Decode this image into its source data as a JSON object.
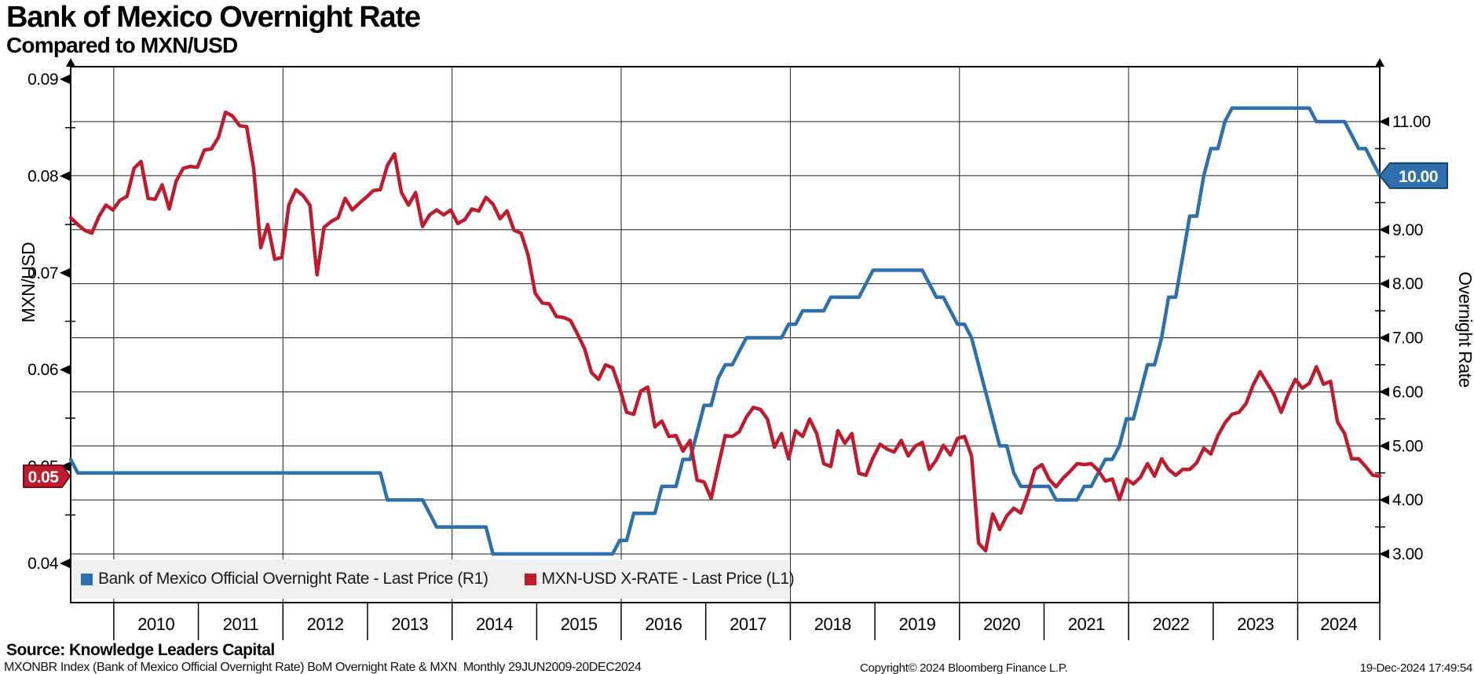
{
  "header": {
    "title": "Bank of Mexico Overnight Rate",
    "subtitle": "Compared to MXN/USD"
  },
  "footer": {
    "source_line": "Source: Knowledge Leaders Capital",
    "description": "MXONBR Index (Bank of Mexico Official Overnight Rate) BoM Overnight Rate & MXN  Monthly 29JUN2009-20DEC2024",
    "copyright": "Copyright© 2024 Bloomberg Finance L.P.",
    "timestamp": "19-Dec-2024 17:49:54"
  },
  "colors": {
    "overnight_rate_blue": "#2e6fad",
    "overnight_badge_border": "#16446e",
    "mxn_usd_red": "#c01b2d",
    "mxn_badge_border": "#70101c",
    "gridline": "#1a1a1a",
    "legend_bg": "#f0f0ee"
  },
  "chart_data": {
    "type": "line",
    "title": "Bank of Mexico Overnight Rate",
    "subtitle": "Compared to MXN/USD",
    "frequency": "Monthly",
    "period": "29JUN2009-20DEC2024",
    "x_axis": {
      "year_labels": [
        "2010",
        "2011",
        "2012",
        "2013",
        "2014",
        "2015",
        "2016",
        "2017",
        "2018",
        "2019",
        "2020",
        "2021",
        "2022",
        "2023",
        "2024"
      ],
      "range_years": [
        2009.49,
        2024.97
      ],
      "gridline_years": [
        2010,
        2012,
        2014,
        2016,
        2018,
        2020,
        2022,
        2024
      ],
      "separator_years": [
        2010,
        2011,
        2012,
        2013,
        2014,
        2015,
        2016,
        2017,
        2018,
        2019,
        2020,
        2021,
        2022,
        2023,
        2024,
        2025
      ]
    },
    "left_axis": {
      "label": "MXN/USD",
      "ticks": [
        0.04,
        0.05,
        0.06,
        0.07,
        0.08,
        0.09
      ],
      "minor_ticks": [
        0.045,
        0.055,
        0.065,
        0.075,
        0.085
      ],
      "range": [
        0.04,
        0.09
      ],
      "gridlines": false
    },
    "right_axis": {
      "label": "Overnight Rate",
      "ticks": [
        3,
        4,
        5,
        6,
        7,
        8,
        9,
        10,
        11
      ],
      "minor_ticks": [
        3.5,
        4.5,
        5.5,
        6.5,
        7.5,
        8.5,
        9.5,
        10.5
      ],
      "range": [
        3,
        11
      ],
      "gridlines": true
    },
    "series": [
      {
        "name": "Bank of Mexico Official Overnight Rate - Last Price (R1)",
        "axis": "right",
        "color": "#2e6fad",
        "monthly_start": "2009-06",
        "values": [
          4.75,
          4.5,
          4.5,
          4.5,
          4.5,
          4.5,
          4.5,
          4.5,
          4.5,
          4.5,
          4.5,
          4.5,
          4.5,
          4.5,
          4.5,
          4.5,
          4.5,
          4.5,
          4.5,
          4.5,
          4.5,
          4.5,
          4.5,
          4.5,
          4.5,
          4.5,
          4.5,
          4.5,
          4.5,
          4.5,
          4.5,
          4.5,
          4.5,
          4.5,
          4.5,
          4.5,
          4.5,
          4.5,
          4.5,
          4.5,
          4.5,
          4.5,
          4.5,
          4.5,
          4.5,
          4.0,
          4.0,
          4.0,
          4.0,
          4.0,
          4.0,
          3.75,
          3.5,
          3.5,
          3.5,
          3.5,
          3.5,
          3.5,
          3.5,
          3.5,
          3.0,
          3.0,
          3.0,
          3.0,
          3.0,
          3.0,
          3.0,
          3.0,
          3.0,
          3.0,
          3.0,
          3.0,
          3.0,
          3.0,
          3.0,
          3.0,
          3.0,
          3.0,
          3.25,
          3.25,
          3.75,
          3.75,
          3.75,
          3.75,
          4.25,
          4.25,
          4.25,
          4.75,
          4.75,
          5.25,
          5.75,
          5.75,
          6.25,
          6.5,
          6.5,
          6.75,
          7.0,
          7.0,
          7.0,
          7.0,
          7.0,
          7.0,
          7.25,
          7.25,
          7.5,
          7.5,
          7.5,
          7.5,
          7.75,
          7.75,
          7.75,
          7.75,
          7.75,
          8.0,
          8.25,
          8.25,
          8.25,
          8.25,
          8.25,
          8.25,
          8.25,
          8.25,
          8.0,
          7.75,
          7.75,
          7.5,
          7.25,
          7.25,
          7.0,
          6.5,
          6.0,
          5.5,
          5.0,
          5.0,
          4.5,
          4.25,
          4.25,
          4.25,
          4.25,
          4.25,
          4.0,
          4.0,
          4.0,
          4.0,
          4.25,
          4.25,
          4.5,
          4.75,
          4.75,
          5.0,
          5.5,
          5.5,
          6.0,
          6.5,
          6.5,
          7.0,
          7.75,
          7.75,
          8.5,
          9.25,
          9.25,
          10.0,
          10.5,
          10.5,
          11.0,
          11.25,
          11.25,
          11.25,
          11.25,
          11.25,
          11.25,
          11.25,
          11.25,
          11.25,
          11.25,
          11.25,
          11.25,
          11.0,
          11.0,
          11.0,
          11.0,
          11.0,
          10.75,
          10.5,
          10.5,
          10.25,
          10.0
        ]
      },
      {
        "name": "MXN-USD X-RATE - Last Price (L1)",
        "axis": "left",
        "color": "#c01b2d",
        "monthly_start": "2009-06",
        "values": [
          0.0757,
          0.075,
          0.0744,
          0.0741,
          0.0758,
          0.077,
          0.0765,
          0.0775,
          0.0779,
          0.0808,
          0.0815,
          0.0777,
          0.0776,
          0.0791,
          0.0766,
          0.0795,
          0.0808,
          0.081,
          0.0809,
          0.0827,
          0.0828,
          0.084,
          0.0866,
          0.0862,
          0.0852,
          0.0851,
          0.0808,
          0.0726,
          0.075,
          0.0714,
          0.0716,
          0.077,
          0.0786,
          0.078,
          0.077,
          0.0698,
          0.0747,
          0.0753,
          0.0757,
          0.0777,
          0.0765,
          0.0772,
          0.0778,
          0.0785,
          0.0786,
          0.0811,
          0.0823,
          0.0783,
          0.077,
          0.0783,
          0.0748,
          0.076,
          0.0765,
          0.076,
          0.0765,
          0.0751,
          0.0755,
          0.0766,
          0.0764,
          0.0778,
          0.0771,
          0.0756,
          0.0764,
          0.0744,
          0.0741,
          0.0718,
          0.0679,
          0.0669,
          0.0668,
          0.0655,
          0.0654,
          0.0651,
          0.0637,
          0.0622,
          0.0597,
          0.059,
          0.0605,
          0.0602,
          0.0581,
          0.0556,
          0.0554,
          0.0578,
          0.0582,
          0.0541,
          0.0547,
          0.0531,
          0.0532,
          0.0516,
          0.0527,
          0.0486,
          0.0484,
          0.0467,
          0.05,
          0.0532,
          0.0531,
          0.0536,
          0.0551,
          0.0561,
          0.0559,
          0.0549,
          0.052,
          0.0534,
          0.0508,
          0.0537,
          0.0531,
          0.0549,
          0.0534,
          0.0503,
          0.05,
          0.0537,
          0.0524,
          0.0534,
          0.0493,
          0.0491,
          0.0509,
          0.0523,
          0.0518,
          0.0515,
          0.0527,
          0.0511,
          0.0521,
          0.0525,
          0.0497,
          0.0507,
          0.0522,
          0.0512,
          0.0529,
          0.0531,
          0.0511,
          0.0421,
          0.0413,
          0.0451,
          0.0435,
          0.0449,
          0.0457,
          0.0452,
          0.0472,
          0.0497,
          0.0502,
          0.0487,
          0.0479,
          0.0488,
          0.0495,
          0.0503,
          0.0502,
          0.0503,
          0.0496,
          0.0485,
          0.0487,
          0.0466,
          0.0487,
          0.0482,
          0.0489,
          0.0503,
          0.049,
          0.0508,
          0.0497,
          0.0491,
          0.0497,
          0.0497,
          0.0504,
          0.0519,
          0.0513,
          0.0532,
          0.0545,
          0.0554,
          0.0556,
          0.0565,
          0.0584,
          0.0598,
          0.0586,
          0.0574,
          0.0556,
          0.0575,
          0.059,
          0.0581,
          0.0586,
          0.0603,
          0.0585,
          0.0588,
          0.0546,
          0.0534,
          0.0508,
          0.0508,
          0.05,
          0.0491,
          0.049
        ]
      }
    ],
    "last_price_badges": [
      {
        "label": "10.00",
        "side": "right",
        "series_index": 0,
        "fill": "#2e6fad",
        "border": "#16446e",
        "value": 10.0
      },
      {
        "label": "0.05",
        "side": "left",
        "series_index": 1,
        "fill": "#c01b2d",
        "border": "#70101c",
        "value": 0.049
      }
    ],
    "legend_position": "bottom-left-inside"
  }
}
